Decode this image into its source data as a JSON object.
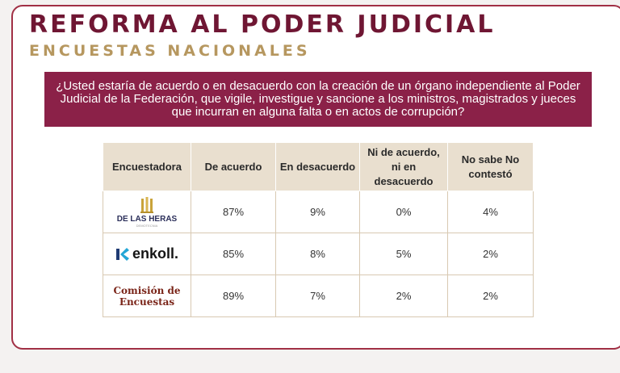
{
  "header": {
    "title": "REFORMA AL PODER JUDICIAL",
    "subtitle": "ENCUESTAS NACIONALES"
  },
  "question": "¿Usted estaría de acuerdo o en desacuerdo con la creación de un órgano independiente al Poder Judicial de la Federación, que vigile, investigue y sancione a los ministros, magistrados y jueces que incurran en alguna falta o en actos de corrupción?",
  "table": {
    "headers": [
      "Encuestadora",
      "De acuerdo",
      "En desacuerdo",
      "Ni de acuerdo, ni en desacuerdo",
      "No sabe No contestó"
    ],
    "rows": [
      {
        "firm": "DE LAS HERAS",
        "firm_tagline": "DEMOTECNIA",
        "logo_icon": "building-columns-icon",
        "values": [
          "87%",
          "9%",
          "0%",
          "4%"
        ]
      },
      {
        "firm": "enkoll.",
        "logo_icon": "enkoll-k-icon",
        "values": [
          "85%",
          "8%",
          "5%",
          "2%"
        ]
      },
      {
        "firm": "Comisión de Encuestas",
        "values": [
          "89%",
          "7%",
          "2%",
          "2%"
        ]
      }
    ]
  },
  "colors": {
    "title": "#6f1633",
    "subtitle": "#b6975f",
    "question_band": "#8b2148",
    "table_header": "#e9dfcf",
    "border": "#a13045"
  }
}
